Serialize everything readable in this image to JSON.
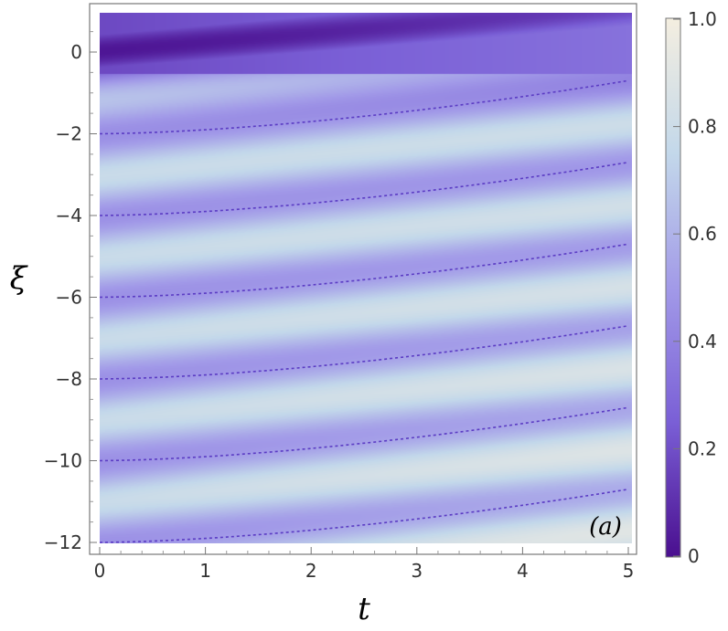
{
  "chart_data": {
    "type": "heatmap",
    "title": "",
    "xlabel": "t",
    "ylabel": "ξ",
    "panel_label": "(a)",
    "xlim": [
      0,
      5.1
    ],
    "ylim": [
      -12.2,
      1.0
    ],
    "x_ticks": [
      0,
      1,
      2,
      3,
      4,
      5
    ],
    "y_ticks": [
      0,
      -2,
      -4,
      -6,
      -8,
      -10,
      -12
    ],
    "x_tick_labels": [
      "0",
      "1",
      "2",
      "3",
      "4",
      "5"
    ],
    "y_tick_labels": [
      "0",
      "−2",
      "−4",
      "−6",
      "−8",
      "−10",
      "−12"
    ],
    "colorbar": {
      "range": [
        0,
        1
      ],
      "ticks": [
        0,
        0.2,
        0.4,
        0.6,
        0.8,
        1.0
      ],
      "tick_labels": [
        "0",
        "0.2",
        "0.4",
        "0.6",
        "0.8",
        "1.0"
      ],
      "colors": [
        "#4a0f8f",
        "#7a5fd6",
        "#a29ae8",
        "#c3d8ea",
        "#f4eee0"
      ]
    },
    "dashed_curves": [
      {
        "start_xi": -2,
        "end_xi": -0.7
      },
      {
        "start_xi": -4,
        "end_xi": -2.7
      },
      {
        "start_xi": -6,
        "end_xi": -4.7
      },
      {
        "start_xi": -8,
        "end_xi": -6.7
      },
      {
        "start_xi": -10,
        "end_xi": -8.7
      },
      {
        "start_xi": -12,
        "end_xi": -10.7
      }
    ],
    "dashed_curve_color": "#5b3cc4",
    "grid": false
  }
}
